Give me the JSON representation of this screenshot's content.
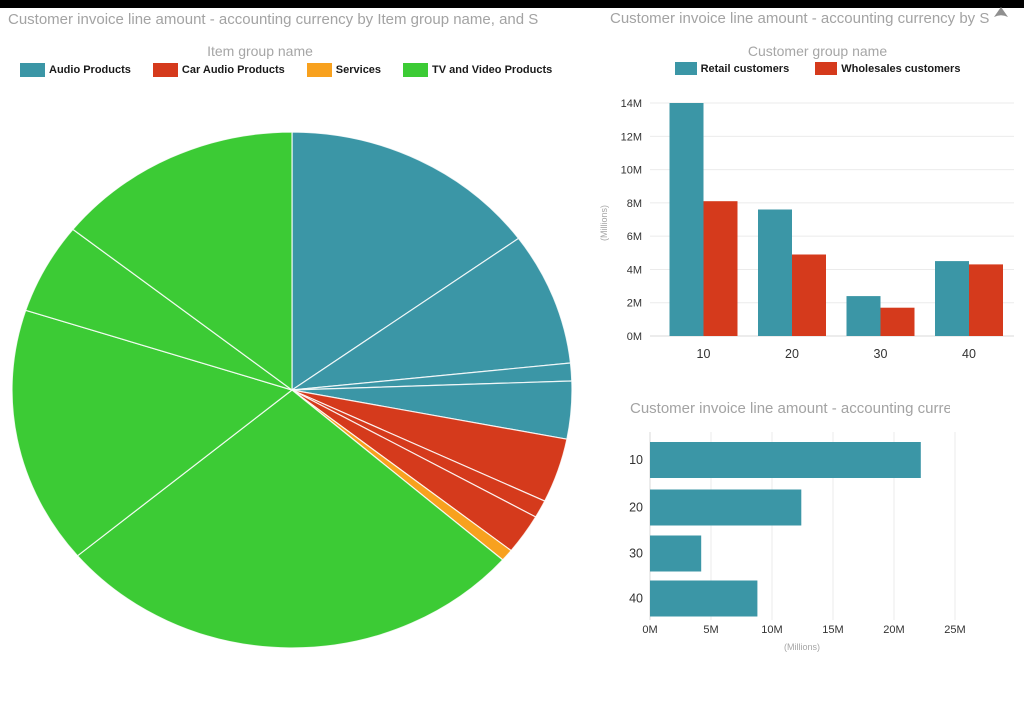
{
  "top_bar": {
    "color": "#000000"
  },
  "colors": {
    "teal": "#3b96a6",
    "red": "#d53a1c",
    "orange": "#f8a11e",
    "green": "#3ccb35",
    "title_gray": "#a3a3a3",
    "legend_title_gray": "#a6a6a6",
    "axis_text": "#333333",
    "gridline": "#ebebeb",
    "axis_line": "#d9d9d9"
  },
  "pie_card": {
    "title": "Customer invoice line amount - accounting currency by Item group name, and S",
    "legend_title": "Item group name"
  },
  "column_card": {
    "title": "Customer invoice line amount - accounting currency by S",
    "legend_title": "Customer group name",
    "header_icon": "caret-up-icon"
  },
  "bar_card": {
    "title": "Customer invoice line amount - accounting currency by S"
  },
  "chart_data": [
    {
      "type": "pie",
      "title": "Customer invoice line amount - accounting currency by Item group name, and S",
      "legend_title": "Item group name",
      "legend_position": "top",
      "angles_clockwise_from_top": true,
      "note": "slices subdivided by a second dimension (Site); white separator lines between sub-slices",
      "groups": [
        {
          "name": "Audio Products",
          "color": "#3b96a6",
          "start_angle": 0,
          "end_angle": 101,
          "share_pct": 28.1,
          "segments": [
            {
              "start": 0,
              "end": 54
            },
            {
              "start": 54,
              "end": 84
            },
            {
              "start": 84,
              "end": 88
            },
            {
              "start": 88,
              "end": 101
            }
          ]
        },
        {
          "name": "Car Audio Products",
          "color": "#d53a1c",
          "start_angle": 101,
          "end_angle": 128.5,
          "share_pct": 7.6,
          "segments": [
            {
              "start": 101,
              "end": 115.5
            },
            {
              "start": 115.5,
              "end": 119.5
            },
            {
              "start": 119.5,
              "end": 128.5
            }
          ]
        },
        {
          "name": "Services",
          "color": "#f8a11e",
          "start_angle": 128.5,
          "end_angle": 131.2,
          "share_pct": 0.8,
          "segments": [
            {
              "start": 128.5,
              "end": 131.2
            }
          ]
        },
        {
          "name": "TV and Video Products",
          "color": "#3ccb35",
          "start_angle": 131.2,
          "end_angle": 360,
          "share_pct": 63.5,
          "segments": [
            {
              "start": 131.2,
              "end": 230
            },
            {
              "start": 230,
              "end": 288
            },
            {
              "start": 288,
              "end": 308.5
            },
            {
              "start": 308.5,
              "end": 360
            }
          ]
        }
      ]
    },
    {
      "type": "bar",
      "orientation": "vertical",
      "title": "Customer invoice line amount - accounting currency by S",
      "legend_title": "Customer group name",
      "categories": [
        "10",
        "20",
        "30",
        "40"
      ],
      "series": [
        {
          "name": "Retail customers",
          "color": "#3b96a6",
          "values": [
            14.0,
            7.6,
            2.4,
            4.5
          ]
        },
        {
          "name": "Wholesales customers",
          "color": "#d53a1c",
          "values": [
            8.1,
            4.9,
            1.7,
            4.3
          ]
        }
      ],
      "ylabel": "(Millions)",
      "ylim": [
        0,
        14
      ],
      "y_ticks": [
        0,
        2,
        4,
        6,
        8,
        10,
        12,
        14
      ],
      "y_tick_labels": [
        "0M",
        "2M",
        "4M",
        "6M",
        "8M",
        "10M",
        "12M",
        "14M"
      ],
      "grid": true
    },
    {
      "type": "bar",
      "orientation": "horizontal",
      "title": "Customer invoice line amount - accounting currency by S",
      "categories": [
        "10",
        "20",
        "30",
        "40"
      ],
      "values": [
        22.2,
        12.4,
        4.2,
        8.8
      ],
      "color": "#3b96a6",
      "xlabel": "(Millions)",
      "xlim": [
        0,
        25
      ],
      "x_ticks": [
        0,
        5,
        10,
        15,
        20,
        25
      ],
      "x_tick_labels": [
        "0M",
        "5M",
        "10M",
        "15M",
        "20M",
        "25M"
      ],
      "grid": true
    }
  ]
}
